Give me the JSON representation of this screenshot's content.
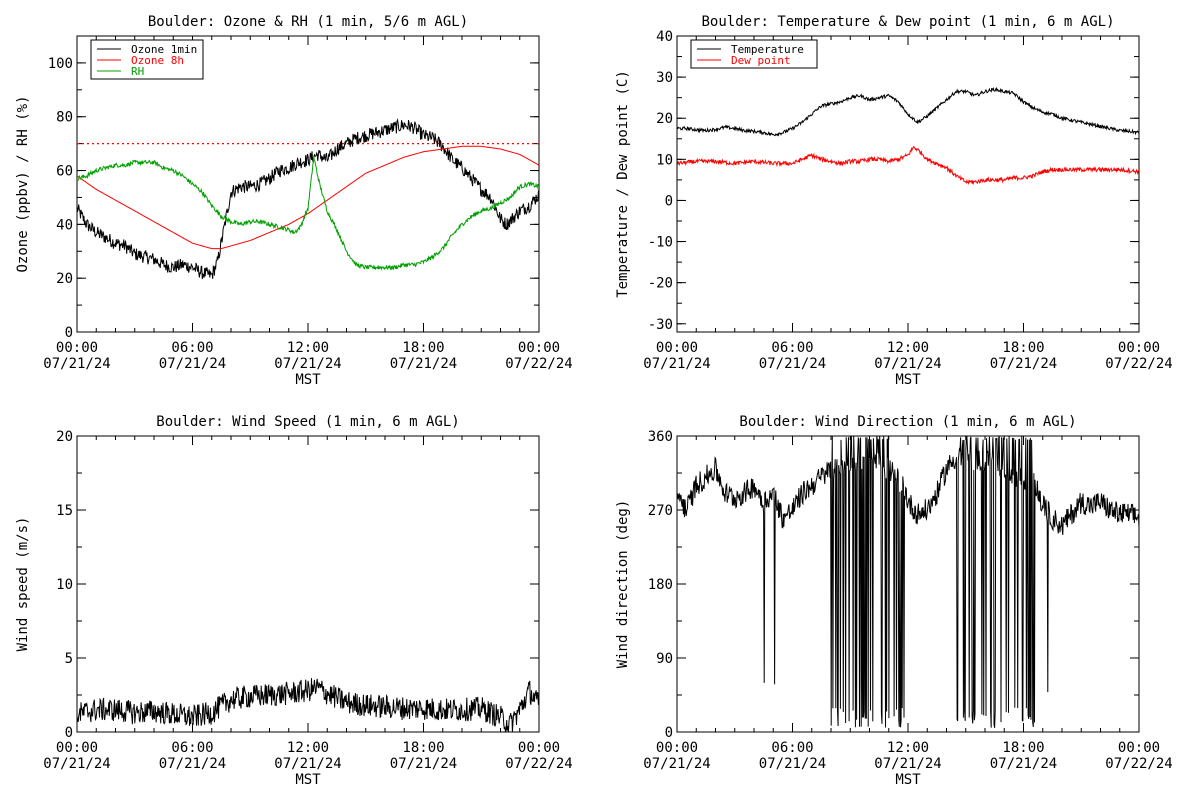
{
  "chart_data": [
    {
      "type": "line",
      "title": "Boulder: Ozone & RH (1 min, 5/6 m AGL)",
      "ylabel": "Ozone (ppbv) / RH (%)",
      "xlabel": "MST",
      "xlim": [
        0,
        24
      ],
      "ylim": [
        0,
        110
      ],
      "xticks": [
        {
          "v": 0,
          "t1": "00:00",
          "t2": "07/21/24"
        },
        {
          "v": 6,
          "t1": "06:00",
          "t2": "07/21/24"
        },
        {
          "v": 12,
          "t1": "12:00",
          "t2": "07/21/24"
        },
        {
          "v": 18,
          "t1": "18:00",
          "t2": "07/21/24"
        },
        {
          "v": 24,
          "t1": "00:00",
          "t2": "07/22/24"
        }
      ],
      "yticks": [
        0,
        20,
        40,
        60,
        80,
        100
      ],
      "grid": false,
      "legend": "top-left",
      "reference_line": {
        "y": 70,
        "color": "#ff0000",
        "style": "dotted"
      },
      "series": [
        {
          "name": "Ozone 1min",
          "color": "#000000",
          "noise": 2.5,
          "x": [
            0,
            0.5,
            1,
            1.5,
            2,
            2.5,
            3,
            3.5,
            4,
            4.5,
            5,
            5.5,
            6,
            6.5,
            7,
            7.3,
            7.6,
            8,
            8.5,
            9,
            9.5,
            10,
            10.5,
            11,
            11.5,
            12,
            12.5,
            13,
            13.5,
            14,
            14.5,
            15,
            15.5,
            16,
            16.5,
            17,
            17.5,
            18,
            18.5,
            19,
            19.5,
            20,
            20.5,
            21,
            21.5,
            22,
            22.3,
            22.6,
            23,
            23.5,
            24
          ],
          "y": [
            46,
            40,
            37,
            35,
            33,
            32,
            29,
            28,
            27,
            25,
            24,
            25,
            24,
            22,
            21,
            26,
            37,
            52,
            54,
            54,
            55,
            57,
            60,
            61,
            63,
            64,
            66,
            64,
            68,
            70,
            72,
            73,
            74,
            75,
            76,
            77,
            76,
            73,
            72,
            69,
            64,
            61,
            57,
            53,
            50,
            42,
            40,
            42,
            45,
            47,
            51
          ]
        },
        {
          "name": "Ozone 8h",
          "color": "#ff0000",
          "noise": 0,
          "x": [
            0,
            1,
            2,
            3,
            4,
            5,
            6,
            7,
            7.5,
            8,
            9,
            10,
            11,
            12,
            13,
            14,
            15,
            16,
            17,
            18,
            19,
            20,
            21,
            22,
            23,
            24
          ],
          "y": [
            58,
            53,
            49,
            45,
            41,
            37,
            33,
            31,
            31,
            32,
            34,
            37,
            40,
            44,
            49,
            54,
            59,
            62,
            65,
            67,
            68,
            69,
            69,
            68,
            66,
            62
          ]
        },
        {
          "name": "RH",
          "color": "#00a000",
          "noise": 0.8,
          "x": [
            0,
            0.5,
            1,
            1.5,
            2,
            2.5,
            3,
            3.5,
            4,
            4.5,
            5,
            5.5,
            6,
            6.5,
            7,
            7.5,
            8,
            8.5,
            9,
            9.5,
            10,
            10.5,
            11,
            11.3,
            11.6,
            12,
            12.3,
            12.6,
            13,
            13.5,
            14,
            14.5,
            15,
            15.5,
            16,
            16.5,
            17,
            17.5,
            18,
            18.5,
            19,
            19.5,
            20,
            20.5,
            21,
            21.5,
            22,
            22.5,
            23,
            23.5,
            24
          ],
          "y": [
            57,
            58,
            60,
            61,
            62,
            62,
            63,
            63,
            63,
            61,
            60,
            58,
            55,
            52,
            47,
            43,
            41,
            40,
            41,
            41,
            40,
            39,
            38,
            37,
            39,
            46,
            65,
            55,
            45,
            38,
            30,
            25,
            24,
            24,
            24,
            24,
            25,
            25,
            26,
            28,
            31,
            36,
            40,
            43,
            45,
            46,
            48,
            50,
            54,
            55,
            54
          ]
        }
      ]
    },
    {
      "type": "line",
      "title": "Boulder: Temperature & Dew point (1 min, 6 m AGL)",
      "ylabel": "Temperature / Dew point (C)",
      "xlabel": "MST",
      "xlim": [
        0,
        24
      ],
      "ylim": [
        -32,
        40
      ],
      "xticks": [
        {
          "v": 0,
          "t1": "00:00",
          "t2": "07/21/24"
        },
        {
          "v": 6,
          "t1": "06:00",
          "t2": "07/21/24"
        },
        {
          "v": 12,
          "t1": "12:00",
          "t2": "07/21/24"
        },
        {
          "v": 18,
          "t1": "18:00",
          "t2": "07/21/24"
        },
        {
          "v": 24,
          "t1": "00:00",
          "t2": "07/22/24"
        }
      ],
      "yticks": [
        -30,
        -20,
        -10,
        0,
        10,
        20,
        30,
        40
      ],
      "grid": false,
      "legend": "top-left",
      "series": [
        {
          "name": "Temperature",
          "color": "#000000",
          "noise": 0.4,
          "x": [
            0,
            0.5,
            1,
            1.5,
            2,
            2.5,
            3,
            3.5,
            4,
            4.5,
            5,
            5.5,
            6,
            6.5,
            7,
            7.5,
            8,
            8.5,
            9,
            9.5,
            10,
            10.5,
            11,
            11.5,
            12,
            12.5,
            13,
            13.5,
            14,
            14.5,
            15,
            15.5,
            16,
            16.5,
            17,
            17.5,
            18,
            18.5,
            19,
            19.5,
            20,
            20.5,
            21,
            21.5,
            22,
            22.5,
            23,
            23.5,
            24
          ],
          "y": [
            17.5,
            17.5,
            17.2,
            17,
            17.3,
            17.8,
            17.5,
            17,
            16.8,
            16.5,
            16,
            16.5,
            17.5,
            19,
            21,
            23,
            23.5,
            24,
            25,
            25.5,
            24.5,
            25,
            25.5,
            24,
            21,
            19,
            20.5,
            22.5,
            24.5,
            26.5,
            26.5,
            25.5,
            26.5,
            27,
            26.5,
            26,
            24,
            22.5,
            21.5,
            21,
            20,
            19.5,
            19,
            18.5,
            18,
            17.5,
            17,
            16.8,
            16.5
          ]
        },
        {
          "name": "Dew point",
          "color": "#ff0000",
          "noise": 0.5,
          "x": [
            0,
            1,
            2,
            3,
            4,
            5,
            6,
            6.5,
            7,
            7.5,
            8,
            8.5,
            9,
            9.5,
            10,
            10.5,
            11,
            11.5,
            12,
            12.3,
            12.6,
            13,
            13.5,
            14,
            14.5,
            15,
            15.5,
            16,
            16.5,
            17,
            17.5,
            18,
            18.5,
            19,
            19.5,
            20,
            21,
            22,
            23,
            24
          ],
          "y": [
            9,
            9.5,
            9.5,
            9,
            9.5,
            9,
            9,
            10,
            11,
            10,
            9.5,
            9,
            9.5,
            9.5,
            10,
            10,
            9.5,
            10,
            11,
            13,
            12,
            10,
            9,
            8,
            6,
            4.5,
            4.5,
            5,
            5,
            5,
            5.5,
            5.5,
            6,
            7,
            7.5,
            7.5,
            7.5,
            7.5,
            7.5,
            7
          ]
        }
      ]
    },
    {
      "type": "line",
      "title": "Boulder: Wind Speed (1 min, 6 m AGL)",
      "ylabel": "Wind speed (m/s)",
      "xlabel": "MST",
      "xlim": [
        0,
        24
      ],
      "ylim": [
        0,
        20
      ],
      "xticks": [
        {
          "v": 0,
          "t1": "00:00",
          "t2": "07/21/24"
        },
        {
          "v": 6,
          "t1": "06:00",
          "t2": "07/21/24"
        },
        {
          "v": 12,
          "t1": "12:00",
          "t2": "07/21/24"
        },
        {
          "v": 18,
          "t1": "18:00",
          "t2": "07/21/24"
        },
        {
          "v": 24,
          "t1": "00:00",
          "t2": "07/22/24"
        }
      ],
      "yticks": [
        0,
        5,
        10,
        15,
        20
      ],
      "grid": false,
      "series": [
        {
          "name": "",
          "color": "#000000",
          "noise": 0.8,
          "x": [
            0,
            1,
            2,
            3,
            4,
            5,
            6,
            7,
            8,
            9,
            10,
            11,
            12,
            12.5,
            13,
            14,
            15,
            16,
            17,
            18,
            19,
            20,
            21,
            22,
            22.5,
            23,
            23.5,
            24
          ],
          "y": [
            1.2,
            1.5,
            1.5,
            1.3,
            1.4,
            1.2,
            1.0,
            1.3,
            2.2,
            2.4,
            2.5,
            2.6,
            2.8,
            3.0,
            2.6,
            2.0,
            1.8,
            1.7,
            1.6,
            1.6,
            1.5,
            1.5,
            1.6,
            1.0,
            0.5,
            1.5,
            2.8,
            1.8
          ]
        }
      ]
    },
    {
      "type": "line",
      "title": "Boulder: Wind Direction (1 min, 6 m AGL)",
      "ylabel": "Wind direction (deg)",
      "xlabel": "MST",
      "xlim": [
        0,
        24
      ],
      "ylim": [
        0,
        360
      ],
      "xticks": [
        {
          "v": 0,
          "t1": "00:00",
          "t2": "07/21/24"
        },
        {
          "v": 6,
          "t1": "06:00",
          "t2": "07/21/24"
        },
        {
          "v": 12,
          "t1": "12:00",
          "t2": "07/21/24"
        },
        {
          "v": 18,
          "t1": "18:00",
          "t2": "07/21/24"
        },
        {
          "v": 24,
          "t1": "00:00",
          "t2": "07/22/24"
        }
      ],
      "yticks": [
        0,
        90,
        180,
        270,
        360
      ],
      "grid": false,
      "wrap_segments": [
        [
          8.0,
          11.8
        ],
        [
          14.5,
          18.6
        ]
      ],
      "series": [
        {
          "name": "",
          "color": "#000000",
          "noise": 14,
          "x": [
            0,
            0.5,
            1,
            1.5,
            2,
            2.5,
            3,
            3.5,
            4,
            4.5,
            5,
            5.5,
            6,
            6.5,
            7,
            7.5,
            8,
            9,
            10,
            11,
            11.8,
            12,
            12.5,
            13,
            13.5,
            14,
            14.5,
            16,
            17,
            18.6,
            19,
            19.5,
            20,
            20.5,
            21,
            21.5,
            22,
            22.5,
            23,
            23.5,
            24
          ],
          "y": [
            290,
            270,
            300,
            310,
            320,
            290,
            285,
            290,
            300,
            280,
            290,
            260,
            270,
            290,
            300,
            310,
            320,
            330,
            330,
            320,
            300,
            280,
            265,
            270,
            290,
            320,
            335,
            330,
            320,
            300,
            275,
            260,
            250,
            265,
            280,
            275,
            280,
            270,
            265,
            265,
            260
          ]
        }
      ]
    }
  ]
}
